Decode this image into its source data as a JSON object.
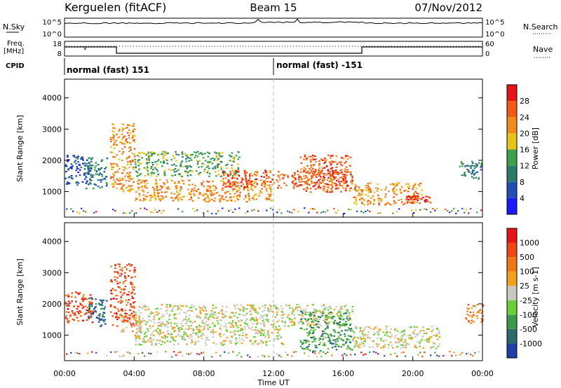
{
  "header": {
    "station": "Kerguelen (fitACF)",
    "beam": "Beam 15",
    "date": "07/Nov/2012"
  },
  "noise_panel": {
    "left_label": "N.Sky",
    "right_label": "N.Search",
    "left_ticks": [
      "10^5",
      "10^0"
    ],
    "right_ticks": [
      "10^5",
      "10^0"
    ]
  },
  "freq_panel": {
    "left_label_1": "Freq.",
    "left_label_2": "[MHz]",
    "left_ticks": [
      "18",
      "8"
    ],
    "right_ticks": [
      "60",
      "0"
    ],
    "right_label": "Nave"
  },
  "cpid_panel": {
    "label": "CPID",
    "segments": [
      {
        "text": "normal (fast) 151",
        "start_hour": 0
      },
      {
        "text": "normal (fast) -151",
        "start_hour": 12
      }
    ]
  },
  "colors": {
    "power": [
      "#1a1aff",
      "#1f4fb4",
      "#2a7a6a",
      "#3aa04a",
      "#e6c21a",
      "#f08a1a",
      "#f05a14",
      "#e61414"
    ],
    "velocity": [
      "#1f3fa8",
      "#2a6a6a",
      "#3a9a4a",
      "#6acd3a",
      "#c8c8c0",
      "#f0a01a",
      "#f07814",
      "#f04814",
      "#e61414"
    ]
  },
  "chart_data": [
    {
      "type": "heatmap",
      "name": "power",
      "xlabel": "",
      "ylabel": "Slant Range [km]",
      "xlim": [
        0,
        24
      ],
      "ylim": [
        180,
        4600
      ],
      "yticks": [
        "1000",
        "2000",
        "3000",
        "4000"
      ],
      "colorbar_label": "Power [dB]",
      "colorbar_ticks": [
        "28",
        "24",
        "20",
        "16",
        "12",
        "8",
        "4"
      ],
      "regions": [
        {
          "x0": 0.0,
          "x1": 1.5,
          "y0": 1200,
          "y1": 2200,
          "level": 1
        },
        {
          "x0": 1.2,
          "x1": 2.4,
          "y0": 1100,
          "y1": 2100,
          "level": 2
        },
        {
          "x0": 2.6,
          "x1": 4.0,
          "y0": 1000,
          "y1": 3200,
          "level": 5
        },
        {
          "x0": 4.0,
          "x1": 10.0,
          "y0": 1500,
          "y1": 2300,
          "level": 3
        },
        {
          "x0": 4.0,
          "x1": 12.0,
          "y0": 700,
          "y1": 1400,
          "level": 5
        },
        {
          "x0": 9.0,
          "x1": 16.5,
          "y0": 1100,
          "y1": 1700,
          "level": 6
        },
        {
          "x0": 13.5,
          "x1": 16.5,
          "y0": 1000,
          "y1": 2200,
          "level": 6
        },
        {
          "x0": 16.5,
          "x1": 20.5,
          "y0": 600,
          "y1": 1300,
          "level": 5
        },
        {
          "x0": 19.5,
          "x1": 21.0,
          "y0": 650,
          "y1": 900,
          "level": 7
        },
        {
          "x0": 22.6,
          "x1": 24.0,
          "y0": 1400,
          "y1": 2000,
          "level": 2
        }
      ]
    },
    {
      "type": "heatmap",
      "name": "velocity",
      "xlabel": "Time UT",
      "ylabel": "Slant Range [km]",
      "xlim": [
        0,
        24
      ],
      "ylim": [
        180,
        4600
      ],
      "xticks": [
        "00:00",
        "04:00",
        "08:00",
        "12:00",
        "16:00",
        "20:00",
        "00:00"
      ],
      "yticks": [
        "1000",
        "2000",
        "3000",
        "4000"
      ],
      "colorbar_label": "Velocity [m s-1]",
      "colorbar_ticks": [
        "1000",
        "500",
        "100",
        "25",
        "-25",
        "-100",
        "-500",
        "-1000"
      ],
      "regions": [
        {
          "x0": 0.0,
          "x1": 1.6,
          "y0": 1400,
          "y1": 2400,
          "level": 7
        },
        {
          "x0": 1.3,
          "x1": 2.4,
          "y0": 1300,
          "y1": 2200,
          "level": 1
        },
        {
          "x0": 2.6,
          "x1": 4.0,
          "y0": 1300,
          "y1": 3300,
          "level": 7
        },
        {
          "x0": 3.2,
          "x1": 4.4,
          "y0": 1100,
          "y1": 1700,
          "level": 5
        },
        {
          "x0": 4.0,
          "x1": 16.5,
          "y0": 1300,
          "y1": 2000,
          "level": 4
        },
        {
          "x0": 4.0,
          "x1": 12.5,
          "y0": 700,
          "y1": 1300,
          "level": 4
        },
        {
          "x0": 13.5,
          "x1": 16.5,
          "y0": 500,
          "y1": 1800,
          "level": 2
        },
        {
          "x0": 16.5,
          "x1": 21.5,
          "y0": 600,
          "y1": 1300,
          "level": 4
        },
        {
          "x0": 23.0,
          "x1": 24.0,
          "y0": 1400,
          "y1": 2000,
          "level": 6
        }
      ]
    }
  ]
}
